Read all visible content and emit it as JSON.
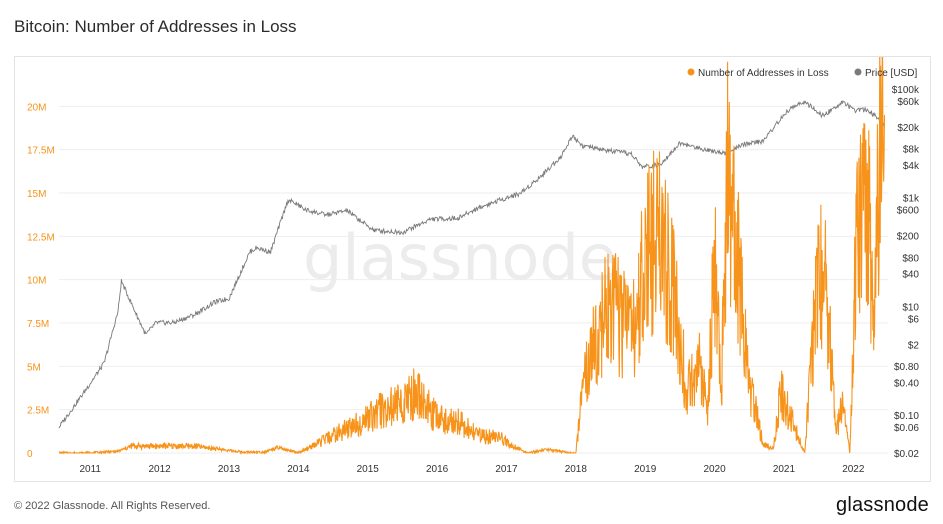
{
  "header": {
    "title": "Bitcoin: Number of Addresses in Loss"
  },
  "footer": {
    "copyright": "© 2022 Glassnode. All Rights Reserved.",
    "logo_text": "glassnode"
  },
  "watermark": "glassnode",
  "colors": {
    "loss": "#f7931a",
    "price": "#7a7a7a",
    "grid": "#eeeeee",
    "axis_text_left": "#f7931a",
    "axis_text_right": "#333333"
  },
  "chart_data": {
    "type": "line",
    "title": "Bitcoin: Number of Addresses in Loss",
    "legend_position": "top-right",
    "grid": true,
    "x_ticks": [
      "2011",
      "2012",
      "2013",
      "2014",
      "2015",
      "2016",
      "2017",
      "2018",
      "2019",
      "2020",
      "2021",
      "2022"
    ],
    "y_left": {
      "scale": "linear",
      "range": [
        0,
        21000000
      ],
      "tick_values": [
        0,
        2500000,
        5000000,
        7500000,
        10000000,
        12500000,
        15000000,
        17500000,
        20000000
      ],
      "tick_labels": [
        "0",
        "2.5M",
        "5M",
        "7.5M",
        "10M",
        "12.5M",
        "15M",
        "17.5M",
        "20M"
      ]
    },
    "y_right": {
      "scale": "log",
      "range": [
        0.02,
        100000
      ],
      "tick_values": [
        0.02,
        0.06,
        0.1,
        0.4,
        0.8,
        2,
        6,
        10,
        40,
        80,
        200,
        600,
        1000,
        4000,
        8000,
        20000,
        60000,
        100000
      ],
      "tick_labels": [
        "$0.02",
        "$0.06",
        "$0.10",
        "$0.40",
        "$0.80",
        "$2",
        "$6",
        "$10",
        "$40",
        "$80",
        "$200",
        "$600",
        "$1k",
        "$4k",
        "$8k",
        "$20k",
        "$60k",
        "$100k"
      ]
    },
    "series": [
      {
        "name": "Number of Addresses in Loss",
        "axis": "left",
        "x": [
          2010.55,
          2011.0,
          2011.4,
          2011.6,
          2011.8,
          2012.0,
          2012.5,
          2012.9,
          2013.2,
          2013.5,
          2013.7,
          2014.0,
          2014.3,
          2014.6,
          2014.9,
          2015.2,
          2015.5,
          2015.7,
          2015.85,
          2016.0,
          2016.3,
          2016.6,
          2016.9,
          2017.1,
          2017.3,
          2017.6,
          2017.9,
          2018.0,
          2018.1,
          2018.3,
          2018.5,
          2018.7,
          2018.9,
          2019.0,
          2019.2,
          2019.4,
          2019.6,
          2019.8,
          2019.9,
          2020.0,
          2020.1,
          2020.2,
          2020.25,
          2020.35,
          2020.5,
          2020.7,
          2020.85,
          2020.95,
          2021.1,
          2021.3,
          2021.45,
          2021.55,
          2021.65,
          2021.75,
          2021.85,
          2021.95,
          2022.05,
          2022.2,
          2022.3,
          2022.4,
          2022.45
        ],
        "values": [
          0,
          0,
          100000,
          400000,
          400000,
          400000,
          400000,
          200000,
          50000,
          50000,
          300000,
          0,
          600000,
          1200000,
          1800000,
          2500000,
          2800000,
          3500000,
          2700000,
          2000000,
          1800000,
          1000000,
          900000,
          400000,
          0,
          200000,
          0,
          0,
          3500000,
          7000000,
          8500000,
          7500000,
          8000000,
          11500000,
          12500000,
          9500000,
          3500000,
          5000000,
          2000000,
          11500000,
          4000000,
          17500000,
          13000000,
          10500000,
          4000000,
          500000,
          300000,
          3500000,
          2000000,
          0,
          8500000,
          11000000,
          7500000,
          1000000,
          3000000,
          0,
          12500000,
          15000000,
          8000000,
          19000000,
          19500000
        ]
      },
      {
        "name": "Price [USD]",
        "axis": "right",
        "x": [
          2010.55,
          2010.9,
          2011.2,
          2011.4,
          2011.45,
          2011.55,
          2011.8,
          2011.95,
          2012.2,
          2012.5,
          2012.8,
          2013.0,
          2013.3,
          2013.4,
          2013.6,
          2013.85,
          2013.95,
          2014.1,
          2014.4,
          2014.7,
          2015.0,
          2015.1,
          2015.5,
          2015.9,
          2016.3,
          2016.6,
          2016.9,
          2017.2,
          2017.5,
          2017.8,
          2017.95,
          2018.1,
          2018.4,
          2018.8,
          2018.95,
          2019.2,
          2019.5,
          2019.8,
          2020.2,
          2020.4,
          2020.7,
          2020.95,
          2021.1,
          2021.3,
          2021.55,
          2021.7,
          2021.85,
          2022.0,
          2022.2,
          2022.35,
          2022.45
        ],
        "values": [
          0.06,
          0.25,
          0.9,
          8,
          29,
          15,
          3,
          5,
          5,
          7,
          12,
          14,
          100,
          120,
          100,
          900,
          800,
          600,
          480,
          580,
          300,
          250,
          230,
          400,
          420,
          650,
          900,
          1200,
          2500,
          6000,
          14000,
          9000,
          7500,
          6400,
          3700,
          4000,
          10000,
          8000,
          6500,
          9500,
          11000,
          28000,
          45000,
          58000,
          32000,
          42000,
          60000,
          40000,
          42000,
          30000,
          20000
        ]
      }
    ]
  }
}
